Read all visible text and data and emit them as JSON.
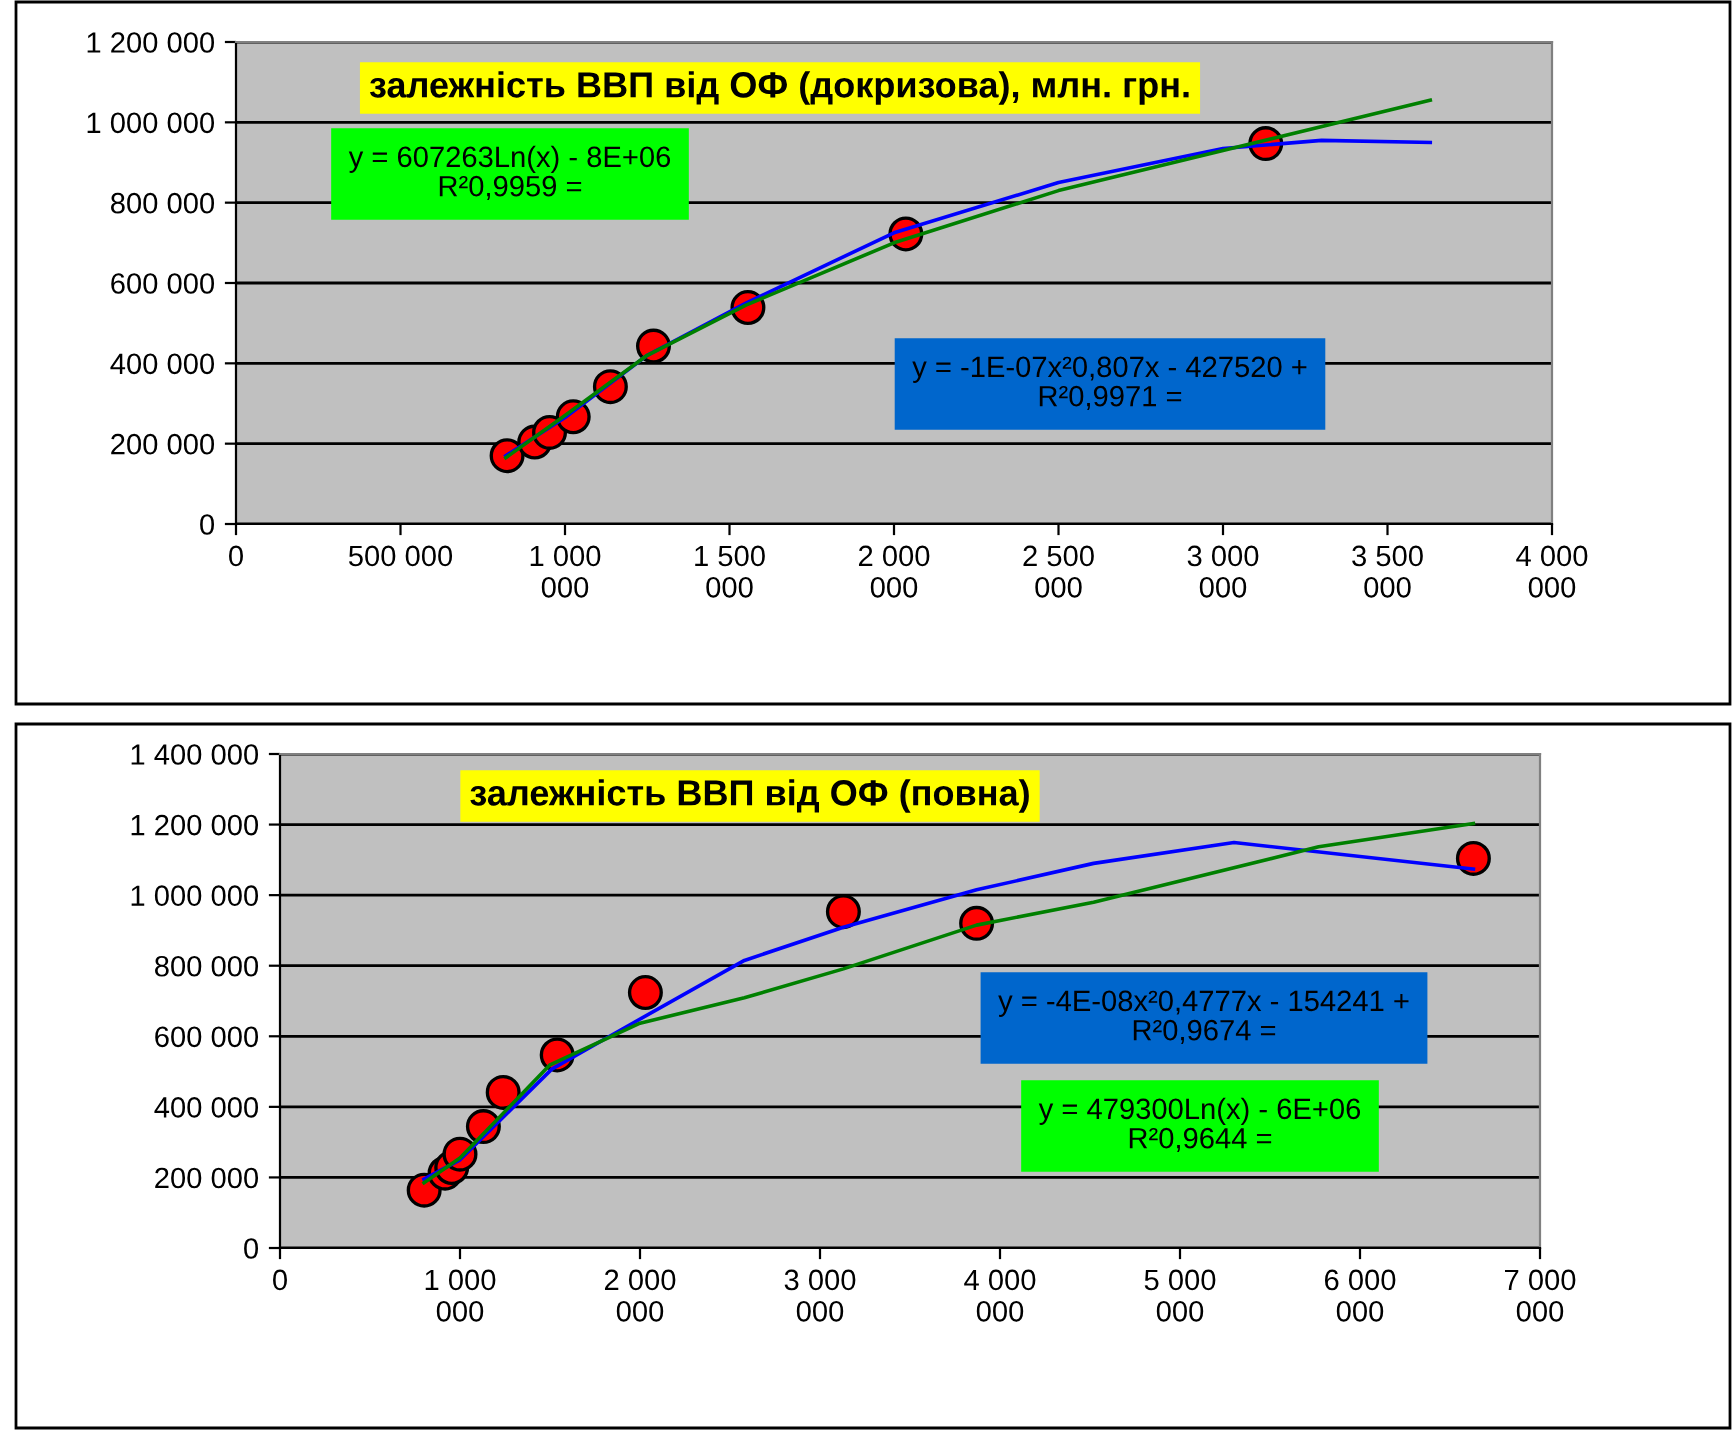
{
  "chart_data": [
    {
      "type": "scatter",
      "title": "залежність ВВП від ОФ (докризова), млн. грн.",
      "annotations": [
        "y = 607263Ln(x) - 8E+06\nR²0,9959 =",
        "y = -1E-07x²0,807x - 427520 +\nR²0,9971 ="
      ],
      "series": [
        {
          "color": "#ff0000",
          "marker": "circle",
          "x": [
            824000,
            908000,
            953000,
            1025000,
            1138000,
            1269000,
            1556000,
            2036000,
            3130000
          ],
          "values": [
            170000,
            204000,
            228000,
            267000,
            342000,
            443000,
            539000,
            722000,
            947000
          ]
        },
        {
          "type": "line",
          "color": "#0000ff",
          "marker": "none",
          "x": [
            820000,
            1000000,
            1250000,
            1550000,
            2000000,
            2500000,
            3000000,
            3300000,
            3630000
          ],
          "values": [
            170000,
            265000,
            420000,
            550000,
            725000,
            850000,
            935000,
            955000,
            950000
          ]
        },
        {
          "type": "line",
          "color": "#008000",
          "marker": "none",
          "x": [
            820000,
            1000000,
            1250000,
            1550000,
            2000000,
            2500000,
            3000000,
            3630000
          ],
          "values": [
            165000,
            270000,
            420000,
            545000,
            700000,
            830000,
            930000,
            1055000
          ]
        }
      ],
      "xlim": [
        0,
        4000000
      ],
      "ylim": [
        0,
        1200000
      ],
      "xticks": [
        0,
        {
          "value": 500000,
          "label": "500 000"
        },
        {
          "value": 1000000,
          "label": "1 000\n000"
        },
        {
          "value": 1500000,
          "label": "1 500\n000"
        },
        {
          "value": 2000000,
          "label": "2 000\n000"
        },
        {
          "value": 2500000,
          "label": "2 500\n000"
        },
        {
          "value": 3000000,
          "label": "3 000\n000"
        },
        {
          "value": 3500000,
          "label": "3 500\n000"
        },
        {
          "value": 4000000,
          "label": "4 000\n000"
        }
      ],
      "yticks": [
        0,
        {
          "value": 200000,
          "label": "200 000"
        },
        {
          "value": 400000,
          "label": "400 000"
        },
        {
          "value": 600000,
          "label": "600 000"
        },
        {
          "value": 800000,
          "label": "800 000"
        },
        {
          "value": 1000000,
          "label": "1 000 000"
        },
        {
          "value": 1200000,
          "label": "1 200 000"
        }
      ],
      "grid": "y"
    },
    {
      "type": "scatter",
      "title": "залежність ВВП від ОФ (повна)",
      "annotations": [
        "y = -4E-08x²0,4777x - 154241 +\nR²0,9674 =",
        "y = 479300Ln(x) - 6E+06\nR²0,9644 ="
      ],
      "series": [
        {
          "color": "#ff0000",
          "marker": "circle",
          "x": [
            801000,
            917000,
            954000,
            1000000,
            1130000,
            1240000,
            1540000,
            2030000,
            3130000,
            3870000,
            6630000
          ],
          "values": [
            164000,
            212000,
            228000,
            266000,
            344000,
            441000,
            547000,
            724000,
            953000,
            920000,
            1104000
          ]
        },
        {
          "type": "line",
          "color": "#0000ff",
          "marker": "none",
          "x": [
            800000,
            1000000,
            1510000,
            1900000,
            2580000,
            3130000,
            3870000,
            4520000,
            5300000,
            6630000
          ],
          "values": [
            195000,
            250000,
            507000,
            620000,
            815000,
            909000,
            1015000,
            1090000,
            1149000,
            1074000
          ]
        },
        {
          "type": "line",
          "color": "#008000",
          "marker": "none",
          "x": [
            800000,
            1000000,
            1500000,
            2000000,
            2580000,
            3130000,
            3870000,
            4520000,
            5770000,
            6630000
          ],
          "values": [
            185000,
            255000,
            519000,
            637000,
            709000,
            791000,
            915000,
            980000,
            1137000,
            1203000
          ]
        }
      ],
      "xlim": [
        0,
        7000000
      ],
      "ylim": [
        0,
        1400000
      ],
      "xticks": [
        0,
        {
          "value": 1000000,
          "label": "1 000\n000"
        },
        {
          "value": 2000000,
          "label": "2 000\n000"
        },
        {
          "value": 3000000,
          "label": "3 000\n000"
        },
        {
          "value": 4000000,
          "label": "4 000\n000"
        },
        {
          "value": 5000000,
          "label": "5 000\n000"
        },
        {
          "value": 6000000,
          "label": "6 000\n000"
        },
        {
          "value": 7000000,
          "label": "7 000\n000"
        }
      ],
      "yticks": [
        0,
        {
          "value": 200000,
          "label": "200 000"
        },
        {
          "value": 400000,
          "label": "400 000"
        },
        {
          "value": 600000,
          "label": "600 000"
        },
        {
          "value": 800000,
          "label": "800 000"
        },
        {
          "value": 1000000,
          "label": "1 000 000"
        },
        {
          "value": 1200000,
          "label": "1 200 000"
        },
        {
          "value": 1400000,
          "label": "1 400 000"
        }
      ],
      "grid": "y"
    }
  ]
}
